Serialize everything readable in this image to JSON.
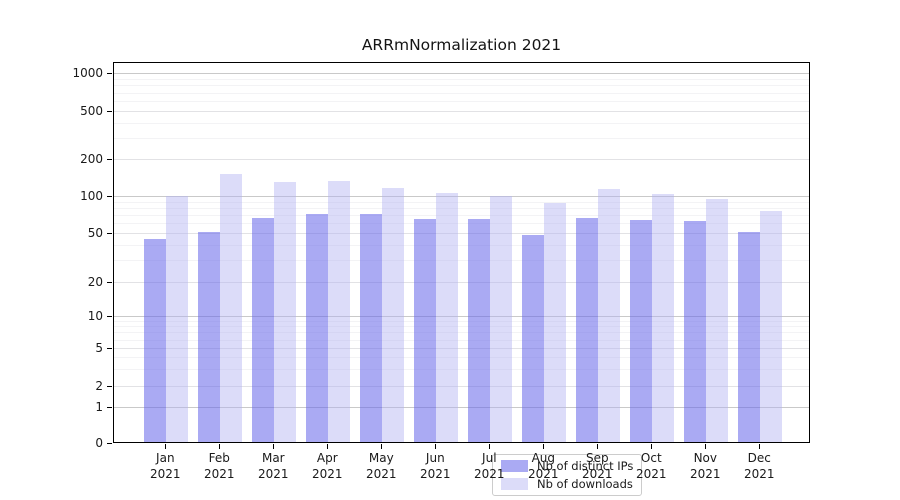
{
  "title": "ARRmNormalization 2021",
  "chart_data": {
    "type": "bar",
    "title": "ARRmNormalization 2021",
    "categories": [
      "Jan 2021",
      "Feb 2021",
      "Mar 2021",
      "Apr 2021",
      "May 2021",
      "Jun 2021",
      "Jul 2021",
      "Aug 2021",
      "Sep 2021",
      "Oct 2021",
      "Nov 2021",
      "Dec 2021"
    ],
    "series": [
      {
        "name": "Nb of distinct IPs",
        "color": "#aaaaf0",
        "fill": "rgba(100,100,233,0.55)",
        "values": [
          45,
          51,
          66,
          72,
          71,
          65,
          65,
          48,
          66,
          64,
          63,
          51
        ]
      },
      {
        "name": "Nb of downloads",
        "color": "#dcdcf8",
        "fill": "rgba(177,177,242,0.45)",
        "values": [
          100,
          150,
          130,
          133,
          116,
          106,
          100,
          88,
          113,
          104,
          95,
          75
        ]
      }
    ],
    "xlabel": "",
    "ylabel": "",
    "y_scale": "symlog",
    "y_ticks": [
      0,
      1,
      2,
      5,
      10,
      20,
      50,
      100,
      200,
      500,
      1000
    ],
    "ylim": [
      0,
      1200
    ],
    "grid": true,
    "legend_position": "lower center",
    "grid_major_color": "#c9c9c9",
    "grid_labeled_color": "#e2e2e5",
    "grid_minor_color": "#f3f3f5"
  }
}
